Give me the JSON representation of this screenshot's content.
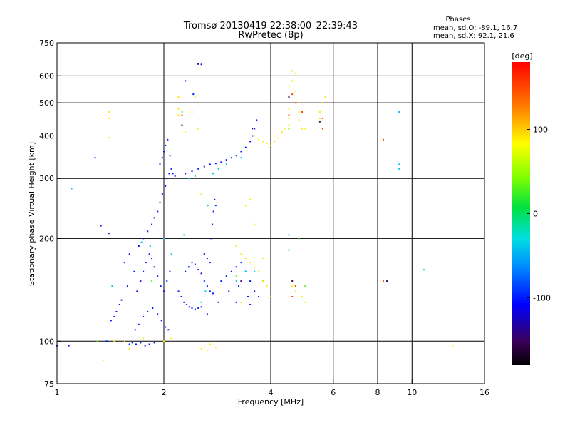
{
  "chart_data": {
    "type": "scatter",
    "title": "Tromsø 20130419 22:38:00–22:39:43",
    "subtitle": "RwPretec (8p)",
    "stats": {
      "heading": "Phases",
      "line1": "mean, sd,O: -89.1, 16.7",
      "line2": "mean, sd,X:  92.1, 21.6"
    },
    "xlabel": "Frequency [MHz]",
    "ylabel": "Stationary phase Virtual Height [km]",
    "xscale": "log",
    "yscale": "log",
    "xlim": [
      1,
      16
    ],
    "ylim": [
      75,
      750
    ],
    "xticks": [
      1,
      2,
      4,
      6,
      8,
      10,
      16
    ],
    "xtick_labels": [
      "1",
      "2",
      "4",
      "6",
      "8",
      "10",
      "16"
    ],
    "yticks": [
      75,
      100,
      200,
      300,
      400,
      500,
      600,
      750
    ],
    "ytick_labels": [
      "75",
      "100",
      "200",
      "300",
      "400",
      "500",
      "600",
      "750"
    ],
    "grid": true,
    "colorbar": {
      "label": "[deg]",
      "range": [
        -180,
        180
      ],
      "ticks": [
        100,
        0,
        -100
      ],
      "tick_labels": [
        "100",
        "0",
        "-100"
      ]
    },
    "series": [
      {
        "phase_deg": -100,
        "points": [
          [
            1.0,
            97
          ],
          [
            1.08,
            97
          ],
          [
            1.28,
            345
          ],
          [
            1.33,
            218
          ],
          [
            1.4,
            207
          ],
          [
            1.38,
            100
          ],
          [
            1.42,
            115
          ],
          [
            1.45,
            118
          ],
          [
            1.47,
            122
          ],
          [
            1.5,
            128
          ],
          [
            1.52,
            132
          ],
          [
            1.55,
            100
          ],
          [
            1.6,
            98
          ],
          [
            1.63,
            99
          ],
          [
            1.67,
            98
          ],
          [
            1.72,
            99
          ],
          [
            1.77,
            97
          ],
          [
            1.82,
            98
          ],
          [
            1.88,
            99
          ],
          [
            1.66,
            108
          ],
          [
            1.7,
            112
          ],
          [
            1.75,
            118
          ],
          [
            1.8,
            122
          ],
          [
            1.86,
            125
          ],
          [
            1.92,
            120
          ],
          [
            1.97,
            115
          ],
          [
            2.02,
            110
          ],
          [
            2.06,
            108
          ],
          [
            1.68,
            140
          ],
          [
            1.72,
            150
          ],
          [
            1.75,
            160
          ],
          [
            1.78,
            170
          ],
          [
            1.82,
            180
          ],
          [
            1.85,
            175
          ],
          [
            1.88,
            165
          ],
          [
            1.92,
            155
          ],
          [
            1.96,
            145
          ],
          [
            2.0,
            140
          ],
          [
            2.04,
            150
          ],
          [
            2.08,
            160
          ],
          [
            1.7,
            190
          ],
          [
            1.75,
            200
          ],
          [
            1.8,
            210
          ],
          [
            1.85,
            220
          ],
          [
            1.88,
            230
          ],
          [
            1.92,
            240
          ],
          [
            1.95,
            255
          ],
          [
            1.98,
            270
          ],
          [
            2.02,
            285
          ],
          [
            2.04,
            300
          ],
          [
            2.07,
            310
          ],
          [
            2.1,
            320
          ],
          [
            1.95,
            330
          ],
          [
            1.98,
            345
          ],
          [
            2.0,
            360
          ],
          [
            2.02,
            375
          ],
          [
            2.05,
            390
          ],
          [
            2.08,
            350
          ],
          [
            2.12,
            310
          ],
          [
            2.15,
            305
          ],
          [
            2.2,
            140
          ],
          [
            2.24,
            135
          ],
          [
            2.28,
            130
          ],
          [
            2.32,
            128
          ],
          [
            2.36,
            126
          ],
          [
            2.4,
            125
          ],
          [
            2.45,
            124
          ],
          [
            2.5,
            125
          ],
          [
            2.55,
            126
          ],
          [
            2.3,
            160
          ],
          [
            2.35,
            165
          ],
          [
            2.4,
            170
          ],
          [
            2.45,
            168
          ],
          [
            2.5,
            162
          ],
          [
            2.55,
            158
          ],
          [
            2.6,
            150
          ],
          [
            2.65,
            145
          ],
          [
            2.7,
            140
          ],
          [
            2.75,
            138
          ],
          [
            2.6,
            180
          ],
          [
            2.65,
            175
          ],
          [
            2.7,
            170
          ],
          [
            2.72,
            200
          ],
          [
            2.74,
            220
          ],
          [
            2.76,
            240
          ],
          [
            2.78,
            260
          ],
          [
            2.8,
            250
          ],
          [
            2.3,
            310
          ],
          [
            2.4,
            315
          ],
          [
            2.5,
            320
          ],
          [
            2.6,
            325
          ],
          [
            2.7,
            330
          ],
          [
            2.8,
            332
          ],
          [
            2.9,
            335
          ],
          [
            3.0,
            340
          ],
          [
            3.1,
            345
          ],
          [
            3.2,
            350
          ],
          [
            3.3,
            360
          ],
          [
            3.4,
            370
          ],
          [
            3.5,
            385
          ],
          [
            3.55,
            400
          ],
          [
            3.6,
            420
          ],
          [
            3.65,
            445
          ],
          [
            2.9,
            150
          ],
          [
            3.0,
            155
          ],
          [
            3.1,
            160
          ],
          [
            3.2,
            165
          ],
          [
            3.3,
            170
          ],
          [
            3.4,
            160
          ],
          [
            3.5,
            150
          ],
          [
            3.6,
            140
          ],
          [
            3.7,
            135
          ],
          [
            2.5,
            650
          ],
          [
            2.55,
            648
          ],
          [
            2.3,
            580
          ],
          [
            2.42,
            530
          ],
          [
            2.65,
            120
          ],
          [
            2.85,
            130
          ],
          [
            3.05,
            140
          ],
          [
            3.25,
            145
          ],
          [
            3.45,
            135
          ],
          [
            3.2,
            130
          ],
          [
            3.5,
            128
          ],
          [
            1.55,
            170
          ],
          [
            1.6,
            180
          ],
          [
            1.65,
            160
          ],
          [
            1.58,
            145
          ]
        ]
      },
      {
        "phase_deg": -40,
        "points": [
          [
            1.1,
            280
          ],
          [
            1.43,
            145
          ],
          [
            1.73,
            195
          ],
          [
            1.83,
            190
          ],
          [
            2.0,
            200
          ],
          [
            2.1,
            180
          ],
          [
            2.28,
            205
          ],
          [
            2.35,
            300
          ],
          [
            2.45,
            305
          ],
          [
            2.55,
            130
          ],
          [
            2.62,
            140
          ],
          [
            2.66,
            250
          ],
          [
            2.75,
            310
          ],
          [
            2.85,
            320
          ],
          [
            3.0,
            330
          ],
          [
            3.2,
            150
          ],
          [
            3.3,
            345
          ],
          [
            3.4,
            160
          ],
          [
            3.6,
            160
          ],
          [
            3.8,
            150
          ],
          [
            4.5,
            205
          ],
          [
            4.5,
            185
          ],
          [
            9.2,
            470
          ],
          [
            9.2,
            330
          ],
          [
            9.2,
            320
          ],
          [
            10.8,
            162
          ]
        ]
      },
      {
        "phase_deg": 90,
        "points": [
          [
            1.4,
            470
          ],
          [
            1.4,
            450
          ],
          [
            1.4,
            395
          ],
          [
            1.45,
            100
          ],
          [
            1.55,
            100
          ],
          [
            1.75,
            102
          ],
          [
            2.0,
            100
          ],
          [
            2.2,
            460
          ],
          [
            2.2,
            480
          ],
          [
            2.2,
            520
          ],
          [
            2.3,
            410
          ],
          [
            2.4,
            470
          ],
          [
            2.45,
            520
          ],
          [
            2.5,
            420
          ],
          [
            2.55,
            270
          ],
          [
            2.55,
            95
          ],
          [
            2.6,
            96
          ],
          [
            2.65,
            94
          ],
          [
            2.7,
            98
          ],
          [
            2.8,
            96
          ],
          [
            3.2,
            190
          ],
          [
            3.3,
            180
          ],
          [
            3.4,
            175
          ],
          [
            3.5,
            170
          ],
          [
            3.6,
            165
          ],
          [
            3.7,
            160
          ],
          [
            3.8,
            150
          ],
          [
            3.9,
            145
          ],
          [
            4.0,
            135
          ],
          [
            3.6,
            400
          ],
          [
            3.7,
            390
          ],
          [
            3.8,
            385
          ],
          [
            3.9,
            380
          ],
          [
            4.0,
            375
          ],
          [
            4.1,
            385
          ],
          [
            4.2,
            395
          ],
          [
            4.3,
            410
          ],
          [
            4.4,
            420
          ],
          [
            4.5,
            430
          ],
          [
            4.5,
            450
          ],
          [
            4.5,
            480
          ],
          [
            4.5,
            520
          ],
          [
            4.5,
            560
          ],
          [
            4.6,
            580
          ],
          [
            4.6,
            620
          ],
          [
            4.7,
            610
          ],
          [
            4.7,
            540
          ],
          [
            4.8,
            500
          ],
          [
            4.8,
            470
          ],
          [
            4.8,
            445
          ],
          [
            4.9,
            420
          ],
          [
            5.0,
            420
          ],
          [
            5.5,
            470
          ],
          [
            5.5,
            450
          ],
          [
            5.6,
            500
          ],
          [
            5.7,
            520
          ],
          [
            3.4,
            250
          ],
          [
            3.5,
            260
          ],
          [
            3.6,
            220
          ],
          [
            3.8,
            175
          ],
          [
            4.3,
            410
          ],
          [
            4.1,
            400
          ],
          [
            4.6,
            145
          ],
          [
            4.6,
            150
          ],
          [
            4.7,
            140
          ],
          [
            4.9,
            135
          ],
          [
            5.0,
            130
          ],
          [
            1.6,
            95
          ],
          [
            1.35,
            88
          ],
          [
            2.1,
            102
          ],
          [
            3.3,
            130
          ],
          [
            13.0,
            97
          ]
        ]
      },
      {
        "phase_deg": 150,
        "points": [
          [
            4.6,
            530
          ],
          [
            4.7,
            500
          ],
          [
            4.9,
            470
          ],
          [
            5.6,
            450
          ],
          [
            5.6,
            420
          ],
          [
            4.5,
            460
          ],
          [
            4.6,
            135
          ],
          [
            8.3,
            390
          ],
          [
            8.3,
            150
          ],
          [
            4.7,
            145
          ],
          [
            2.25,
            460
          ]
        ]
      },
      {
        "phase_deg": -150,
        "points": [
          [
            2.25,
            430
          ],
          [
            2.5,
            650
          ],
          [
            4.5,
            520
          ],
          [
            5.5,
            440
          ],
          [
            3.55,
            420
          ],
          [
            4.6,
            150
          ],
          [
            8.5,
            150
          ],
          [
            3.3,
            150
          ],
          [
            2.6,
            180
          ]
        ]
      },
      {
        "phase_deg": 30,
        "points": [
          [
            1.3,
            100
          ],
          [
            1.85,
            150
          ],
          [
            2.25,
            470
          ],
          [
            3.2,
            155
          ],
          [
            4.5,
            420
          ],
          [
            4.8,
            200
          ],
          [
            5.0,
            145
          ]
        ]
      }
    ]
  }
}
